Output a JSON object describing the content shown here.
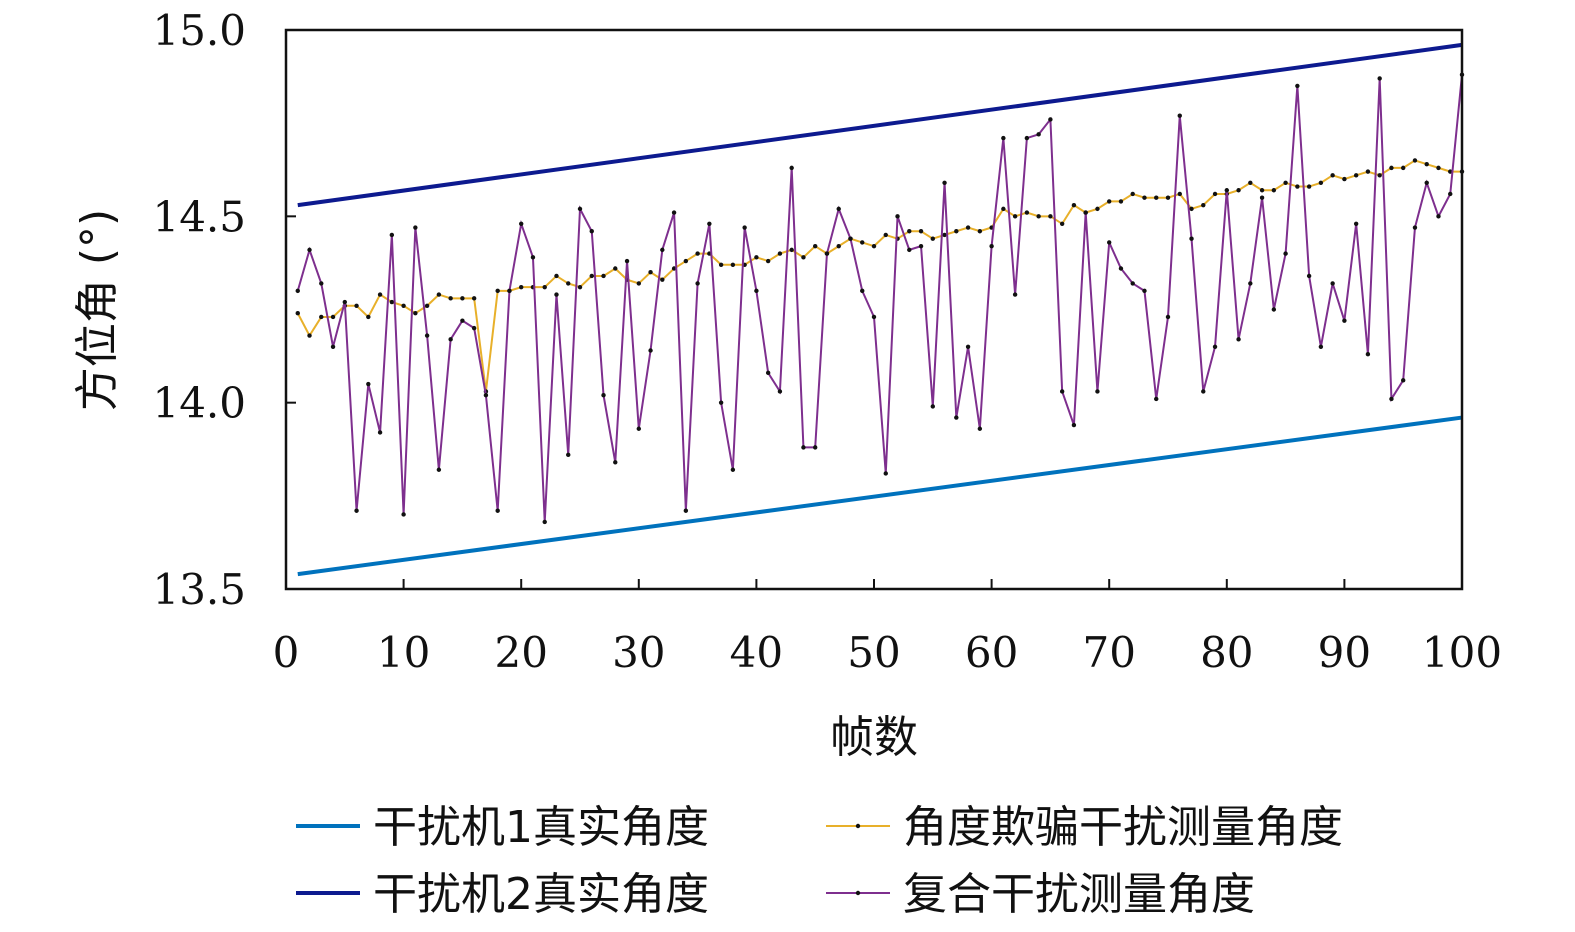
{
  "chart_data": {
    "type": "line",
    "title": "",
    "xlabel": "帧数",
    "ylabel": "方位角 (°)",
    "xlim": [
      0,
      100
    ],
    "ylim": [
      13.5,
      15.0
    ],
    "xticks": [
      "0",
      "10",
      "20",
      "30",
      "40",
      "50",
      "60",
      "70",
      "80",
      "90",
      "100"
    ],
    "yticks": [
      "13.5",
      "14.0",
      "14.5",
      "15.0"
    ],
    "grid": false,
    "legend_position": "bottom",
    "series": [
      {
        "name": "干扰机1真实角度",
        "color": "#0072bd",
        "markers": false,
        "x": [
          1,
          100
        ],
        "values": [
          13.54,
          13.96
        ]
      },
      {
        "name": "干扰机2真实角度",
        "color": "#0d1a8f",
        "markers": false,
        "x": [
          1,
          100
        ],
        "values": [
          14.53,
          14.96
        ]
      },
      {
        "name": "角度欺骗干扰测量角度",
        "color": "#e8b02a",
        "markers": true,
        "x_start": 1,
        "values": [
          14.24,
          14.18,
          14.23,
          14.23,
          14.26,
          14.26,
          14.23,
          14.29,
          14.27,
          14.26,
          14.24,
          14.26,
          14.29,
          14.28,
          14.28,
          14.28,
          14.03,
          14.3,
          14.3,
          14.31,
          14.31,
          14.31,
          14.34,
          14.32,
          14.31,
          14.34,
          14.34,
          14.36,
          14.33,
          14.32,
          14.35,
          14.33,
          14.36,
          14.38,
          14.4,
          14.4,
          14.37,
          14.37,
          14.37,
          14.39,
          14.38,
          14.4,
          14.41,
          14.39,
          14.42,
          14.4,
          14.42,
          14.44,
          14.43,
          14.42,
          14.45,
          14.44,
          14.46,
          14.46,
          14.44,
          14.45,
          14.46,
          14.47,
          14.46,
          14.47,
          14.52,
          14.5,
          14.51,
          14.5,
          14.5,
          14.48,
          14.53,
          14.51,
          14.52,
          14.54,
          14.54,
          14.56,
          14.55,
          14.55,
          14.55,
          14.56,
          14.52,
          14.53,
          14.56,
          14.56,
          14.57,
          14.59,
          14.57,
          14.57,
          14.59,
          14.58,
          14.58,
          14.59,
          14.61,
          14.6,
          14.61,
          14.62,
          14.61,
          14.63,
          14.63,
          14.65,
          14.64,
          14.63,
          14.62,
          14.62
        ]
      },
      {
        "name": "复合干扰测量角度",
        "color": "#7e2f8e",
        "markers": true,
        "x_start": 1,
        "values": [
          14.3,
          14.41,
          14.32,
          14.15,
          14.27,
          13.71,
          14.05,
          13.92,
          14.45,
          13.7,
          14.47,
          14.18,
          13.82,
          14.17,
          14.22,
          14.2,
          14.02,
          13.71,
          14.3,
          14.48,
          14.39,
          13.68,
          14.29,
          13.86,
          14.52,
          14.46,
          14.02,
          13.84,
          14.38,
          13.93,
          14.14,
          14.41,
          14.51,
          13.71,
          14.32,
          14.48,
          14.0,
          13.82,
          14.47,
          14.3,
          14.08,
          14.03,
          14.63,
          13.88,
          13.88,
          14.4,
          14.52,
          14.44,
          14.3,
          14.23,
          13.81,
          14.5,
          14.41,
          14.42,
          13.99,
          14.59,
          13.96,
          14.15,
          13.93,
          14.42,
          14.71,
          14.29,
          14.71,
          14.72,
          14.76,
          14.03,
          13.94,
          14.51,
          14.03,
          14.43,
          14.36,
          14.32,
          14.3,
          14.01,
          14.23,
          14.77,
          14.44,
          14.03,
          14.15,
          14.57,
          14.17,
          14.32,
          14.55,
          14.25,
          14.4,
          14.85,
          14.34,
          14.15,
          14.32,
          14.22,
          14.48,
          14.13,
          14.87,
          14.01,
          14.06,
          14.47,
          14.59,
          14.5,
          14.56,
          14.88
        ]
      }
    ]
  }
}
